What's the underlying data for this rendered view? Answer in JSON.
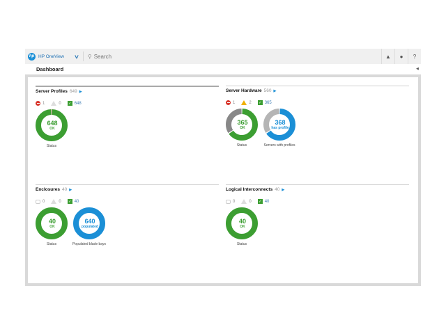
{
  "app": {
    "name": "HP OneView",
    "logo": "hp",
    "search_placeholder": "Search",
    "icons": [
      "bell-icon",
      "user-icon",
      "help-icon"
    ]
  },
  "page": {
    "title": "Dashboard"
  },
  "colors": {
    "ok": "#3c9e32",
    "critical": "#d9372d",
    "warning": "#f0b000",
    "blue": "#1b8fd6",
    "gray": "#888888",
    "light_gray": "#b5b5b5"
  },
  "panels": [
    {
      "title": "Server Profiles",
      "count": "649",
      "status": [
        {
          "type": "critical",
          "value": "1"
        },
        {
          "type": "warning-off",
          "value": "0"
        },
        {
          "type": "ok",
          "value": "648"
        }
      ],
      "donuts": [
        {
          "value": "648",
          "sub": "OK",
          "label": "Status",
          "color": "ok",
          "segments": [
            {
              "value": 648,
              "color": "#3c9e32"
            },
            {
              "value": 1,
              "color": "#d9372d"
            }
          ]
        }
      ]
    },
    {
      "title": "Server Hardware",
      "count": "560",
      "status": [
        {
          "type": "critical",
          "value": "1"
        },
        {
          "type": "warning",
          "value": "2"
        },
        {
          "type": "ok",
          "value": "365"
        }
      ],
      "donuts": [
        {
          "value": "365",
          "sub": "OK",
          "label": "Status",
          "color": "ok",
          "segments": [
            {
              "value": 365,
              "color": "#3c9e32"
            },
            {
              "value": 192,
              "color": "#888888"
            }
          ]
        },
        {
          "value": "368",
          "sub": "has profile",
          "label": "Servers with profiles",
          "color": "blue",
          "segments": [
            {
              "value": 368,
              "color": "#1b8fd6"
            },
            {
              "value": 192,
              "color": "#b5b5b5"
            }
          ]
        }
      ]
    },
    {
      "title": "Enclosures",
      "count": "40",
      "status": [
        {
          "type": "disabled",
          "value": "0"
        },
        {
          "type": "warning-off",
          "value": "0"
        },
        {
          "type": "ok",
          "value": "40"
        }
      ],
      "donuts": [
        {
          "value": "40",
          "sub": "OK",
          "label": "Status",
          "color": "ok",
          "segments": [
            {
              "value": 40,
              "color": "#3c9e32"
            }
          ]
        },
        {
          "value": "640",
          "sub": "populated",
          "label": "Populated blade bays",
          "color": "blue",
          "segments": [
            {
              "value": 640,
              "color": "#1b8fd6"
            }
          ]
        }
      ]
    },
    {
      "title": "Logical Interconnects",
      "count": "40",
      "status": [
        {
          "type": "disabled",
          "value": "0"
        },
        {
          "type": "warning-off",
          "value": "0"
        },
        {
          "type": "ok",
          "value": "40"
        }
      ],
      "donuts": [
        {
          "value": "40",
          "sub": "OK",
          "label": "Status",
          "color": "ok",
          "segments": [
            {
              "value": 40,
              "color": "#3c9e32"
            }
          ]
        }
      ]
    }
  ]
}
